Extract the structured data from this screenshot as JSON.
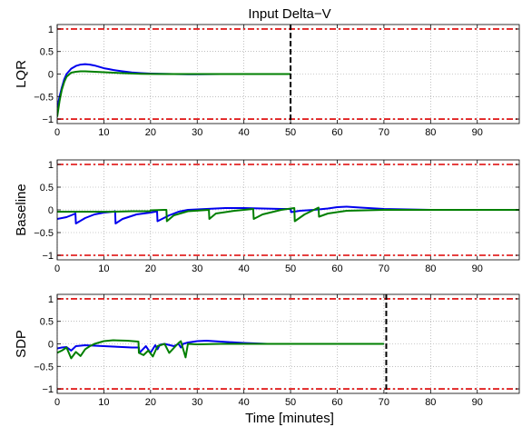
{
  "figure": {
    "title": "Input Delta−V",
    "xlabel": "Time [minutes]"
  },
  "chart_data": [
    {
      "type": "line",
      "title": "Input Delta−V",
      "xlabel": "",
      "ylabel": "LQR",
      "xlim": [
        0,
        99
      ],
      "ylim": [
        -1.1,
        1.1
      ],
      "xticks": [
        0,
        10,
        20,
        30,
        40,
        50,
        60,
        70,
        80,
        90
      ],
      "yticks": [
        -1,
        -0.5,
        0,
        0.5,
        1
      ],
      "ytick_labels": [
        "−1",
        "−0.5",
        "0",
        "0.5",
        "1"
      ],
      "grid": true,
      "limit_lines": {
        "values": [
          1,
          -1
        ],
        "color": "#dd0000",
        "style": "dash-dot"
      },
      "vline": {
        "x": 50,
        "color": "#000000",
        "style": "dashed"
      },
      "series": [
        {
          "color": "#0000ee",
          "x": [
            0,
            0.5,
            1,
            1.5,
            2,
            3,
            4,
            5,
            6,
            7,
            8,
            9,
            10,
            11,
            12,
            14,
            16,
            18,
            20,
            22,
            25,
            28,
            30,
            35,
            40,
            45,
            50
          ],
          "y": [
            -0.75,
            -0.5,
            -0.3,
            -0.12,
            0.0,
            0.12,
            0.18,
            0.21,
            0.22,
            0.21,
            0.19,
            0.16,
            0.13,
            0.11,
            0.09,
            0.06,
            0.035,
            0.02,
            0.01,
            0.005,
            0,
            -0.005,
            -0.005,
            0,
            0,
            0,
            0
          ]
        },
        {
          "color": "#007f00",
          "x": [
            0,
            0.5,
            1,
            1.5,
            2,
            3,
            4,
            5,
            6,
            7,
            8,
            9,
            10,
            12,
            14,
            16,
            18,
            20,
            25,
            30,
            35,
            40,
            45,
            50
          ],
          "y": [
            -0.95,
            -0.6,
            -0.35,
            -0.18,
            -0.06,
            0.03,
            0.05,
            0.06,
            0.06,
            0.055,
            0.05,
            0.045,
            0.04,
            0.03,
            0.02,
            0.012,
            0.006,
            0.003,
            0,
            0,
            0,
            0,
            0,
            0
          ]
        }
      ]
    },
    {
      "type": "line",
      "title": "",
      "xlabel": "",
      "ylabel": "Baseline",
      "xlim": [
        0,
        99
      ],
      "ylim": [
        -1.1,
        1.1
      ],
      "xticks": [
        0,
        10,
        20,
        30,
        40,
        50,
        60,
        70,
        80,
        90
      ],
      "yticks": [
        -1,
        -0.5,
        0,
        0.5,
        1
      ],
      "ytick_labels": [
        "−1",
        "−0.5",
        "0",
        "0.5",
        "1"
      ],
      "grid": true,
      "limit_lines": {
        "values": [
          1,
          -1
        ],
        "color": "#dd0000",
        "style": "dash-dot"
      },
      "series": [
        {
          "color": "#0000ee",
          "x": [
            0,
            2,
            3,
            3.9,
            4.0,
            6,
            8,
            10,
            12,
            12.4,
            12.5,
            14,
            17,
            20,
            21,
            21.4,
            21.5,
            24,
            26,
            28,
            32,
            36,
            40,
            44,
            48,
            50,
            50.1,
            52,
            55,
            58,
            60,
            62,
            65,
            70,
            80,
            90,
            99
          ],
          "y": [
            -0.2,
            -0.16,
            -0.12,
            -0.08,
            -0.3,
            -0.18,
            -0.1,
            -0.06,
            -0.04,
            -0.03,
            -0.3,
            -0.2,
            -0.1,
            -0.06,
            -0.04,
            -0.03,
            -0.25,
            -0.12,
            -0.04,
            0.0,
            0.02,
            0.04,
            0.04,
            0.03,
            0.02,
            0.02,
            -0.05,
            -0.02,
            0.0,
            0.03,
            0.06,
            0.07,
            0.05,
            0.02,
            0.0,
            0.0,
            0.0
          ]
        },
        {
          "color": "#007f00",
          "x": [
            0,
            4,
            8,
            12,
            16,
            19.9,
            20,
            23,
            23.4,
            23.5,
            25,
            28,
            32.5,
            32.6,
            34,
            38,
            42,
            42.1,
            44,
            48,
            50.8,
            50.9,
            53,
            56,
            56.1,
            58,
            62,
            70,
            80,
            90,
            99
          ],
          "y": [
            -0.04,
            -0.04,
            -0.04,
            -0.04,
            -0.03,
            -0.03,
            -0.01,
            0.0,
            0.0,
            -0.25,
            -0.12,
            -0.03,
            0.0,
            -0.2,
            -0.08,
            -0.02,
            0.02,
            -0.2,
            -0.1,
            0.0,
            0.04,
            -0.25,
            -0.1,
            0.05,
            -0.15,
            -0.08,
            -0.02,
            0.0,
            0.0,
            0.0,
            0.0
          ]
        }
      ]
    },
    {
      "type": "line",
      "title": "",
      "xlabel": "Time [minutes]",
      "ylabel": "SDP",
      "xlim": [
        0,
        99
      ],
      "ylim": [
        -1.1,
        1.1
      ],
      "xticks": [
        0,
        10,
        20,
        30,
        40,
        50,
        60,
        70,
        80,
        90
      ],
      "yticks": [
        -1,
        -0.5,
        0,
        0.5,
        1
      ],
      "ytick_labels": [
        "−1",
        "−0.5",
        "0",
        "0.5",
        "1"
      ],
      "grid": true,
      "limit_lines": {
        "values": [
          1,
          -1
        ],
        "color": "#dd0000",
        "style": "dash-dot"
      },
      "vline": {
        "x": 70.5,
        "color": "#000000",
        "style": "dashed"
      },
      "series": [
        {
          "color": "#0000ee",
          "x": [
            0,
            1,
            2,
            3,
            4,
            5,
            6,
            8,
            10,
            12,
            14,
            16,
            17.5,
            17.6,
            19,
            20,
            21,
            21.5,
            22,
            23,
            25,
            26,
            26.5,
            27,
            28,
            30,
            32,
            35,
            40,
            45,
            50,
            55,
            60,
            65,
            70
          ],
          "y": [
            -0.1,
            -0.08,
            -0.07,
            -0.15,
            -0.05,
            -0.04,
            -0.03,
            -0.04,
            -0.05,
            -0.06,
            -0.07,
            -0.08,
            -0.08,
            -0.2,
            -0.05,
            -0.2,
            -0.03,
            -0.12,
            -0.02,
            0.0,
            -0.05,
            0.0,
            -0.08,
            0.0,
            0.03,
            0.06,
            0.07,
            0.05,
            0.02,
            0.0,
            0.0,
            0.0,
            0.0,
            0.0,
            0.0
          ]
        },
        {
          "color": "#007f00",
          "x": [
            0,
            1,
            2,
            3,
            4,
            5,
            6,
            7,
            8,
            10,
            12,
            15,
            17.4,
            17.5,
            18.5,
            19.5,
            20.5,
            21.5,
            23,
            24,
            26,
            26.5,
            27.5,
            28,
            30,
            35,
            40,
            50,
            60,
            70
          ],
          "y": [
            -0.2,
            -0.15,
            -0.08,
            -0.32,
            -0.18,
            -0.27,
            -0.12,
            -0.05,
            0.0,
            0.06,
            0.08,
            0.07,
            0.05,
            -0.2,
            -0.25,
            -0.15,
            -0.28,
            -0.05,
            0.0,
            -0.2,
            0.02,
            0.06,
            -0.3,
            0.0,
            -0.01,
            0.0,
            0.0,
            0.0,
            0.0,
            0.0
          ]
        }
      ]
    }
  ]
}
